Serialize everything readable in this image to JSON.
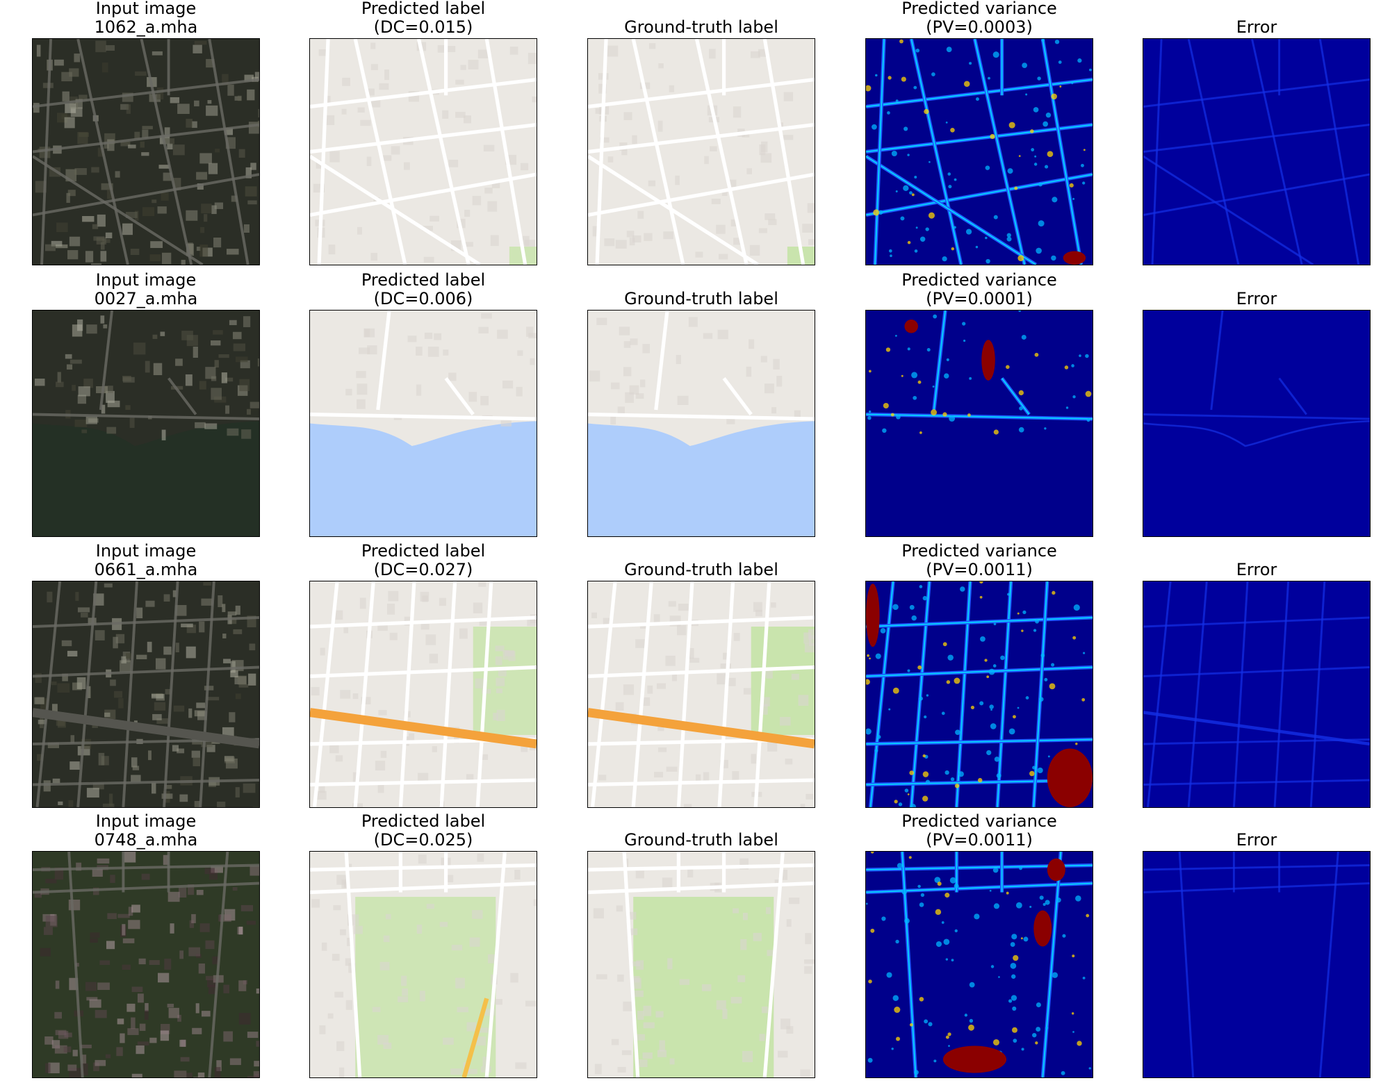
{
  "columns": [
    "input",
    "pred",
    "gt",
    "var",
    "err"
  ],
  "rows": [
    {
      "scene": "urban-diagonal",
      "titles": {
        "input": [
          "Input image",
          "1062_a.mha"
        ],
        "pred": [
          "Predicted label",
          "(DC=0.015)"
        ],
        "gt": [
          "Ground-truth label"
        ],
        "var": [
          "Predicted variance",
          "(PV=0.0003)"
        ],
        "err": [
          "Error"
        ]
      }
    },
    {
      "scene": "coastline",
      "titles": {
        "input": [
          "Input image",
          "0027_a.mha"
        ],
        "pred": [
          "Predicted label",
          "(DC=0.006)"
        ],
        "gt": [
          "Ground-truth label"
        ],
        "var": [
          "Predicted variance",
          "(PV=0.0001)"
        ],
        "err": [
          "Error"
        ]
      }
    },
    {
      "scene": "highway-grid",
      "titles": {
        "input": [
          "Input image",
          "0661_a.mha"
        ],
        "pred": [
          "Predicted label",
          "(DC=0.027)"
        ],
        "gt": [
          "Ground-truth label"
        ],
        "var": [
          "Predicted variance",
          "(PV=0.0011)"
        ],
        "err": [
          "Error"
        ]
      }
    },
    {
      "scene": "park",
      "titles": {
        "input": [
          "Input image",
          "0748_a.mha"
        ],
        "pred": [
          "Predicted label",
          "(DC=0.025)"
        ],
        "gt": [
          "Ground-truth label"
        ],
        "var": [
          "Predicted variance",
          "(PV=0.0011)"
        ],
        "err": [
          "Error"
        ]
      }
    }
  ],
  "palette": {
    "map_land": "#ebe8e3",
    "map_road": "#ffffff",
    "map_water": "#aecdfb",
    "map_park": "#c9e4ad",
    "map_highway": "#f4a23b",
    "sat_dark": "#2b2e26",
    "sat_road": "#6a6a64",
    "sat_water": "#243025",
    "jet_low": "#00008b",
    "jet_mid": "#00ffff",
    "jet_high": "#8b0000",
    "err_base": "#00009c",
    "err_line": "#1530e6"
  }
}
